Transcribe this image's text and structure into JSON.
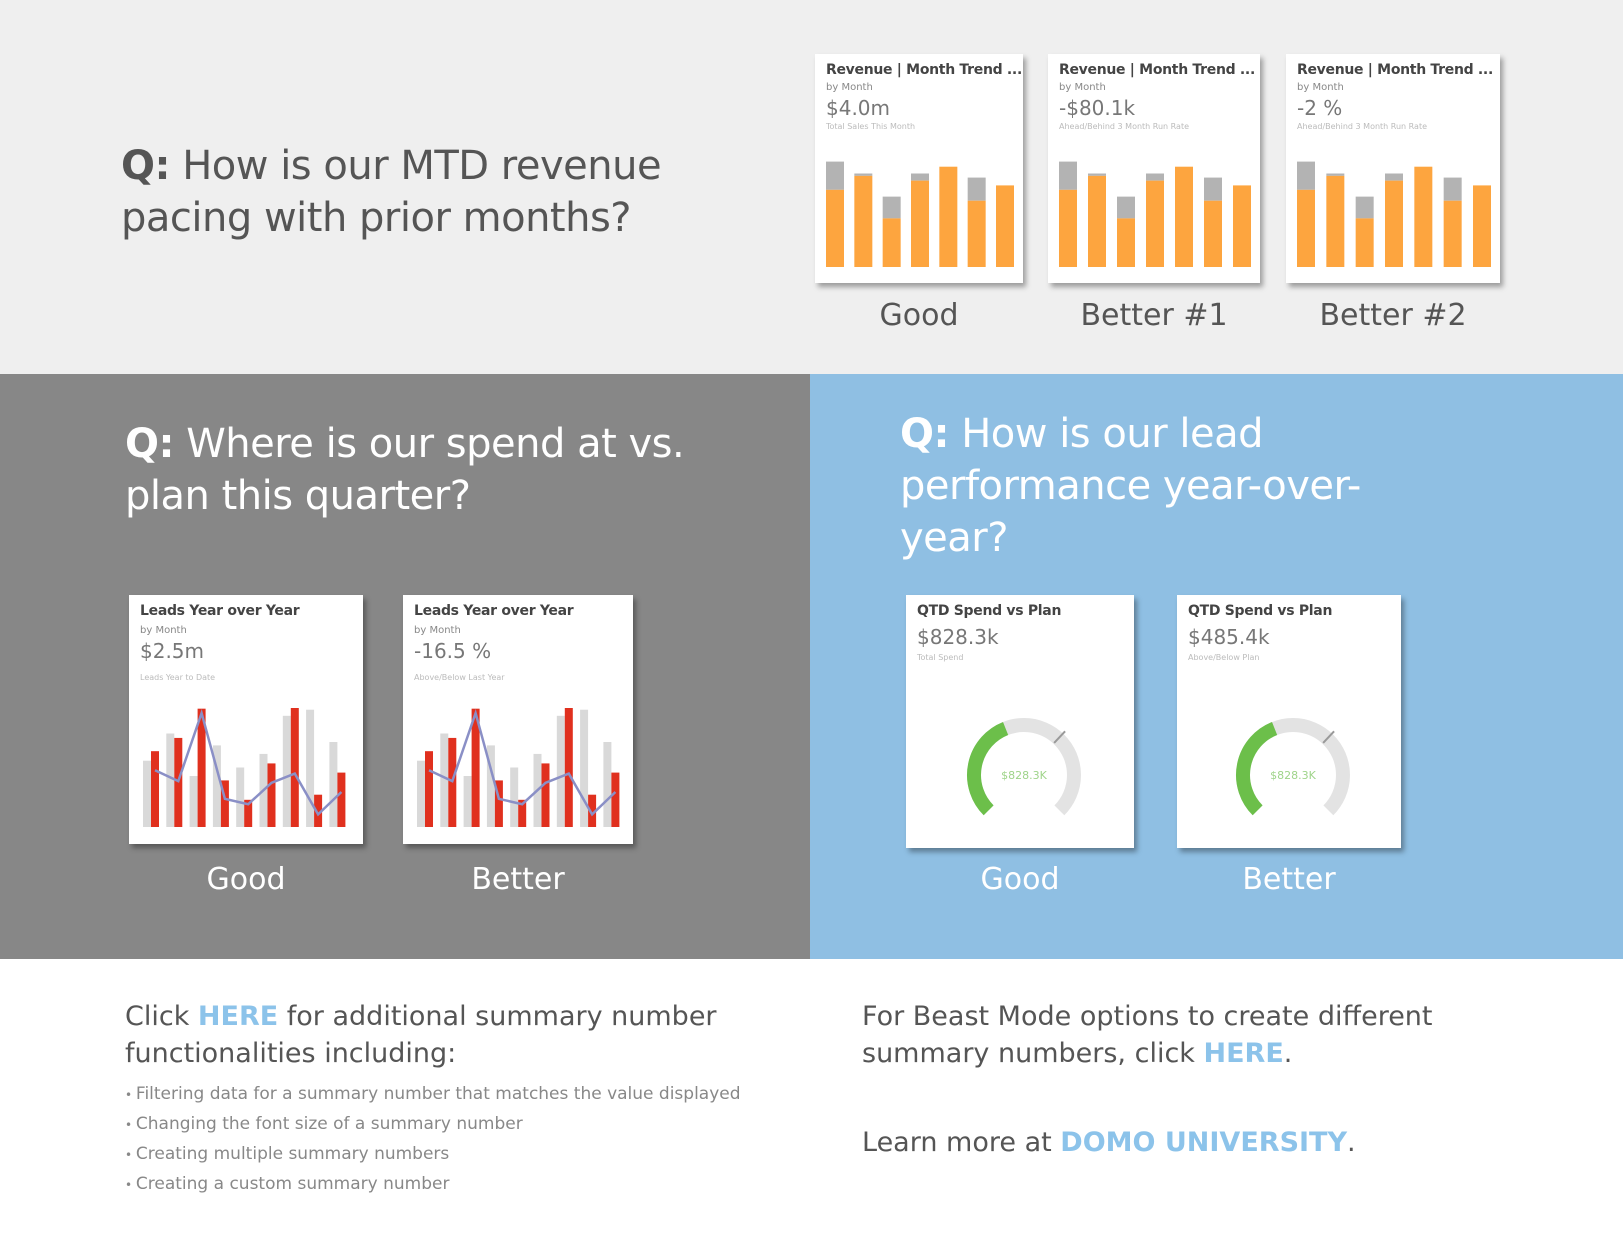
{
  "top": {
    "q_prefix": "Q:",
    "q_text": " How is our MTD revenue pacing with prior months?",
    "cards": [
      {
        "title": "Revenue | Month Trend ...",
        "subtitle": "by Month",
        "value": "$4.0m",
        "desc": "Total Sales This Month",
        "label": "Good"
      },
      {
        "title": "Revenue | Month Trend ...",
        "subtitle": "by Month",
        "value": "-$80.1k",
        "desc": "Ahead/Behind 3 Month Run Rate",
        "label": "Better #1"
      },
      {
        "title": "Revenue | Month Trend ...",
        "subtitle": "by Month",
        "value": "-2 %",
        "desc": "Ahead/Behind 3 Month Run Rate",
        "label": "Better #2"
      }
    ],
    "bars": {
      "total": [
        310,
        275,
        207,
        275,
        295,
        263,
        240
      ],
      "actual": [
        227,
        268,
        143,
        254,
        295,
        195,
        240
      ]
    }
  },
  "gray": {
    "q_prefix": "Q:",
    "q_text": " Where is our spend at vs. plan this quarter?",
    "cards": [
      {
        "title": "Leads Year over Year",
        "subtitle": "by Month",
        "value": "$2.5m",
        "desc": "Leads Year to Date",
        "label": "Good"
      },
      {
        "title": "Leads Year over Year",
        "subtitle": "by Month",
        "value": "-16.5 %",
        "desc": "Above/Below Last Year",
        "label": "Better"
      }
    ],
    "chart": {
      "prior": [
        195,
        275,
        150,
        240,
        175,
        215,
        327,
        345,
        250
      ],
      "current": [
        223,
        262,
        348,
        137,
        80,
        187,
        350,
        95,
        160
      ],
      "line": [
        167,
        135,
        335,
        83,
        67,
        130,
        157,
        37,
        103
      ]
    }
  },
  "blue": {
    "q_prefix": "Q:",
    "q_text": " How is our lead performance year-over-year?",
    "cards": [
      {
        "title": "QTD Spend vs Plan",
        "value": "$828.3k",
        "desc": "Total Spend",
        "gauge_label": "$828.3K",
        "label": "Good"
      },
      {
        "title": "QTD Spend vs Plan",
        "value": "$485.4k",
        "desc": "Above/Below Plan",
        "gauge_label": "$828.3K",
        "label": "Better"
      }
    ],
    "gauge": {
      "fill": 0.42,
      "marker": 0.66
    }
  },
  "bottom": {
    "left": {
      "pre": "Click ",
      "link": "HERE",
      "post": " for additional summary number functionalities including:",
      "bullets": [
        "Filtering data for a summary number that matches the value displayed",
        "Changing the font size of a summary number",
        "Creating multiple summary numbers",
        "Creating a custom summary number"
      ]
    },
    "right": {
      "pre": "For Beast Mode options to create different summary numbers, click ",
      "link": "HERE",
      "post": ".",
      "learn_pre": "Learn more at ",
      "learn_link": "DOMO UNIVERSITY",
      "learn_post": "."
    }
  },
  "colors": {
    "orange": "#fda53f",
    "bar_gray": "#b3b3b3",
    "red": "#e0301e",
    "light_gray": "#d9d9d9",
    "line": "#8a8fc6",
    "green": "#6cbf4a",
    "link": "#8cc3ea"
  }
}
